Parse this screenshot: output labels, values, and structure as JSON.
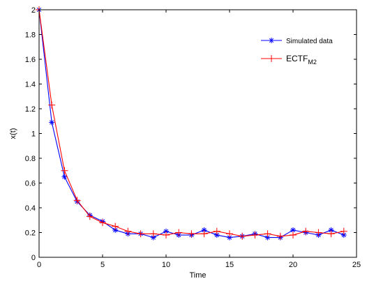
{
  "chart_data": {
    "type": "line",
    "xlabel": "Time",
    "ylabel": "x(t)",
    "xlim": [
      0,
      25
    ],
    "ylim": [
      0,
      2
    ],
    "xticks": [
      0,
      5,
      10,
      15,
      20,
      25
    ],
    "yticks": [
      0,
      0.2,
      0.4,
      0.6,
      0.8,
      1,
      1.2,
      1.4,
      1.6,
      1.8,
      2
    ],
    "grid": false,
    "legend_position": "top-right",
    "series": [
      {
        "name": "Simulated data",
        "color": "#0000ff",
        "marker": "asterisk",
        "x": [
          0,
          1,
          2,
          3,
          4,
          5,
          6,
          7,
          8,
          9,
          10,
          11,
          12,
          13,
          14,
          15,
          16,
          17,
          18,
          19,
          20,
          21,
          22,
          23,
          24
        ],
        "y": [
          2.0,
          1.09,
          0.65,
          0.45,
          0.34,
          0.29,
          0.22,
          0.19,
          0.19,
          0.16,
          0.21,
          0.18,
          0.18,
          0.22,
          0.18,
          0.16,
          0.17,
          0.19,
          0.16,
          0.16,
          0.22,
          0.2,
          0.18,
          0.22,
          0.18
        ]
      },
      {
        "name_main": "ECTF",
        "name_sub": "M2",
        "color": "#ff0000",
        "marker": "plus",
        "x": [
          0,
          1,
          2,
          3,
          4,
          5,
          6,
          7,
          8,
          9,
          10,
          11,
          12,
          13,
          14,
          15,
          16,
          17,
          18,
          19,
          20,
          21,
          22,
          23,
          24
        ],
        "y": [
          2.0,
          1.23,
          0.7,
          0.46,
          0.33,
          0.28,
          0.25,
          0.21,
          0.19,
          0.19,
          0.18,
          0.2,
          0.19,
          0.19,
          0.21,
          0.19,
          0.17,
          0.18,
          0.19,
          0.17,
          0.18,
          0.21,
          0.2,
          0.19,
          0.21
        ]
      }
    ]
  }
}
